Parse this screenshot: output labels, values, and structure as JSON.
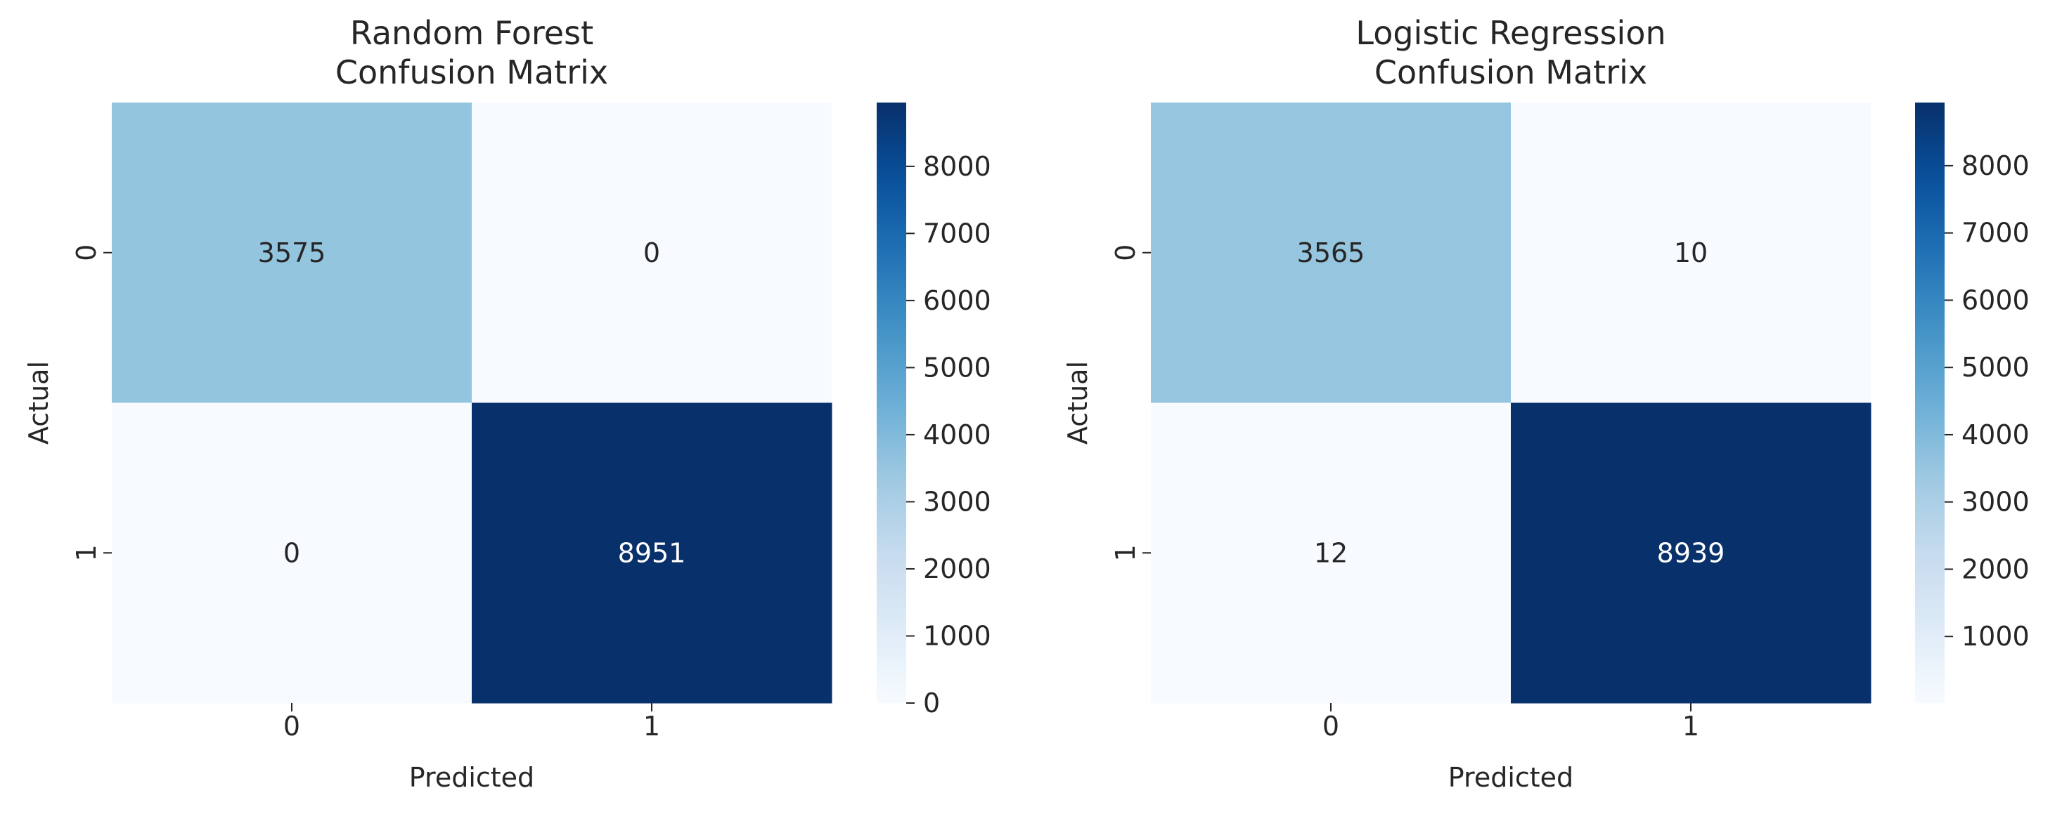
{
  "colors": {
    "cmap": "Blues",
    "text_dark": "#262626",
    "text_light": "#ffffff"
  },
  "chart_data": [
    {
      "type": "heatmap",
      "title": "Random Forest\nConfusion Matrix",
      "title_lines": [
        "Random Forest",
        "Confusion Matrix"
      ],
      "xlabel": "Predicted",
      "ylabel": "Actual",
      "x_categories": [
        "0",
        "1"
      ],
      "y_categories": [
        "0",
        "1"
      ],
      "values": [
        [
          3575,
          0
        ],
        [
          0,
          8951
        ]
      ],
      "colorbar": {
        "vmin": 0,
        "vmax": 8951,
        "ticks": [
          0,
          1000,
          2000,
          3000,
          4000,
          5000,
          6000,
          7000,
          8000
        ],
        "tick_labels": [
          "0",
          "1000",
          "2000",
          "3000",
          "4000",
          "5000",
          "6000",
          "7000",
          "8000"
        ]
      }
    },
    {
      "type": "heatmap",
      "title": "Logistic Regression\nConfusion Matrix",
      "title_lines": [
        "Logistic Regression",
        "Confusion Matrix"
      ],
      "xlabel": "Predicted",
      "ylabel": "Actual",
      "x_categories": [
        "0",
        "1"
      ],
      "y_categories": [
        "0",
        "1"
      ],
      "values": [
        [
          3565,
          10
        ],
        [
          12,
          8939
        ]
      ],
      "colorbar": {
        "vmin": 10,
        "vmax": 8939,
        "ticks": [
          1000,
          2000,
          3000,
          4000,
          5000,
          6000,
          7000,
          8000
        ],
        "tick_labels": [
          "1000",
          "2000",
          "3000",
          "4000",
          "5000",
          "6000",
          "7000",
          "8000"
        ]
      }
    }
  ]
}
